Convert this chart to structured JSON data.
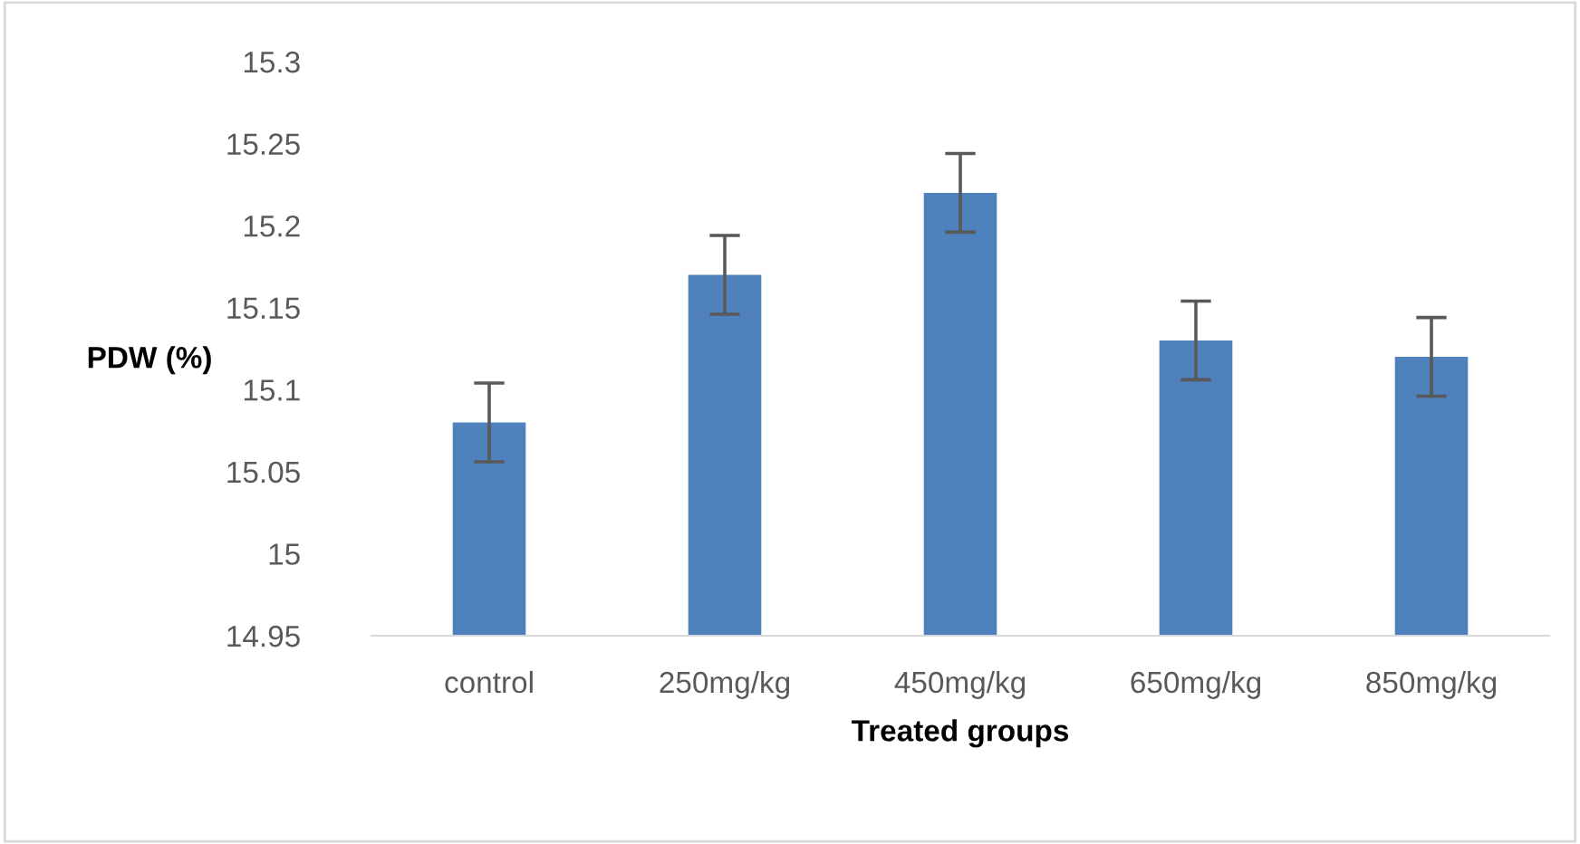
{
  "chart_data": {
    "type": "bar",
    "xlabel": "Treated groups",
    "ylabel": "PDW (%)",
    "categories": [
      "control",
      "250mg/kg",
      "450mg/kg",
      "650mg/kg",
      "850mg/kg"
    ],
    "values": [
      15.08,
      15.17,
      15.22,
      15.13,
      15.12
    ],
    "errors": [
      0.024,
      0.024,
      0.024,
      0.024,
      0.024
    ],
    "color": "#4f81bd",
    "ylim": [
      14.95,
      15.3
    ],
    "yticks": [
      14.95,
      15,
      15.05,
      15.1,
      15.15,
      15.2,
      15.25,
      15.3
    ],
    "grid": false
  }
}
